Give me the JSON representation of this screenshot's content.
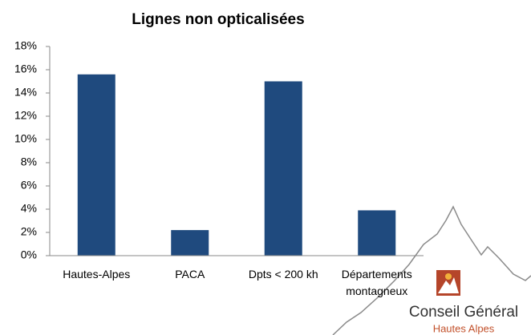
{
  "chart_data": {
    "type": "bar",
    "title": "Lignes non opticalisées",
    "categories": [
      "Hautes-Alpes",
      "PACA",
      "Dpts < 200 kh",
      "Départements montagneux"
    ],
    "values": [
      15.6,
      2.2,
      15.0,
      3.9
    ],
    "color": "#1f4a7e",
    "ylim": [
      0,
      18
    ],
    "yticks": [
      {
        "value": 0,
        "label": "0%"
      },
      {
        "value": 2,
        "label": "2%"
      },
      {
        "value": 4,
        "label": "4%"
      },
      {
        "value": 6,
        "label": "6%"
      },
      {
        "value": 8,
        "label": "8%"
      },
      {
        "value": 10,
        "label": "10%"
      },
      {
        "value": 12,
        "label": "12%"
      },
      {
        "value": 14,
        "label": "14%"
      },
      {
        "value": 16,
        "label": "16%"
      },
      {
        "value": 18,
        "label": "18%"
      }
    ],
    "grid": false
  },
  "logo": {
    "title": "Conseil Général",
    "subtitle": "Hautes Alpes"
  }
}
